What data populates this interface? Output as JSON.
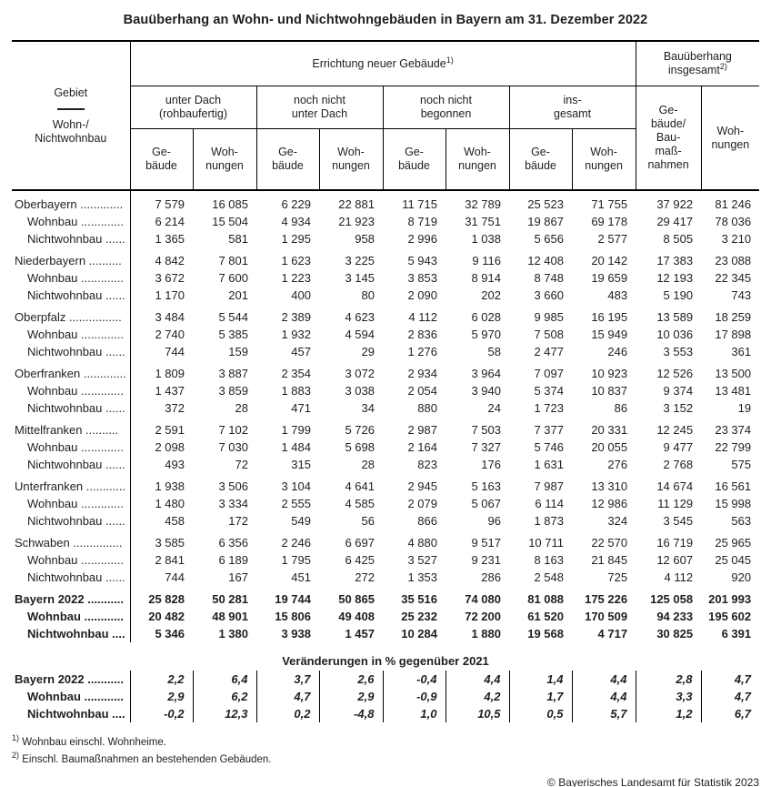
{
  "title": "Bauüberhang an Wohn- und Nichtwohngebäuden in Bayern am 31. Dezember 2022",
  "header": {
    "stub": {
      "top": "Gebiet",
      "bottom": "Wohn-/\nNichtwohnbau"
    },
    "group_errichtung": {
      "text": "Errichtung neuer Gebäude",
      "sup": "1)"
    },
    "group_bauueberhang": {
      "line1": "Bauüberhang",
      "line2": "insgesamt",
      "sup": "2)"
    },
    "subgroups": [
      "unter Dach\n(rohbaufertig)",
      "noch nicht\nunter Dach",
      "noch nicht\nbegonnen",
      "ins-\ngesamt"
    ],
    "leaf_gebaeude": "Ge-\nbäude",
    "leaf_wohnungen": "Woh-\nnungen",
    "leaf_gebaeude_baumassnahmen": "Ge-\nbäude/\nBau-\nmaß-\nnahmen"
  },
  "main_rows": [
    {
      "label": "Oberbayern .............",
      "indent": false,
      "bold": false,
      "group_start": true,
      "values": [
        "7 579",
        "16 085",
        "6 229",
        "22 881",
        "11 715",
        "32 789",
        "25 523",
        "71 755",
        "37 922",
        "81 246"
      ]
    },
    {
      "label": "Wohnbau .............",
      "indent": true,
      "bold": false,
      "group_start": false,
      "values": [
        "6 214",
        "15 504",
        "4 934",
        "21 923",
        "8 719",
        "31 751",
        "19 867",
        "69 178",
        "29 417",
        "78 036"
      ]
    },
    {
      "label": "Nichtwohnbau ......",
      "indent": true,
      "bold": false,
      "group_start": false,
      "values": [
        "1 365",
        "581",
        "1 295",
        "958",
        "2 996",
        "1 038",
        "5 656",
        "2 577",
        "8 505",
        "3 210"
      ]
    },
    {
      "label": "Niederbayern ..........",
      "indent": false,
      "bold": false,
      "group_start": true,
      "values": [
        "4 842",
        "7 801",
        "1 623",
        "3 225",
        "5 943",
        "9 116",
        "12 408",
        "20 142",
        "17 383",
        "23 088"
      ]
    },
    {
      "label": "Wohnbau .............",
      "indent": true,
      "bold": false,
      "group_start": false,
      "values": [
        "3 672",
        "7 600",
        "1 223",
        "3 145",
        "3 853",
        "8 914",
        "8 748",
        "19 659",
        "12 193",
        "22 345"
      ]
    },
    {
      "label": "Nichtwohnbau ......",
      "indent": true,
      "bold": false,
      "group_start": false,
      "values": [
        "1 170",
        "201",
        "400",
        "80",
        "2 090",
        "202",
        "3 660",
        "483",
        "5 190",
        "743"
      ]
    },
    {
      "label": "Oberpfalz ................",
      "indent": false,
      "bold": false,
      "group_start": true,
      "values": [
        "3 484",
        "5 544",
        "2 389",
        "4 623",
        "4 112",
        "6 028",
        "9 985",
        "16 195",
        "13 589",
        "18 259"
      ]
    },
    {
      "label": "Wohnbau .............",
      "indent": true,
      "bold": false,
      "group_start": false,
      "values": [
        "2 740",
        "5 385",
        "1 932",
        "4 594",
        "2 836",
        "5 970",
        "7 508",
        "15 949",
        "10 036",
        "17 898"
      ]
    },
    {
      "label": "Nichtwohnbau ......",
      "indent": true,
      "bold": false,
      "group_start": false,
      "values": [
        "744",
        "159",
        "457",
        "29",
        "1 276",
        "58",
        "2 477",
        "246",
        "3 553",
        "361"
      ]
    },
    {
      "label": "Oberfranken .............",
      "indent": false,
      "bold": false,
      "group_start": true,
      "values": [
        "1 809",
        "3 887",
        "2 354",
        "3 072",
        "2 934",
        "3 964",
        "7 097",
        "10 923",
        "12 526",
        "13 500"
      ]
    },
    {
      "label": "Wohnbau .............",
      "indent": true,
      "bold": false,
      "group_start": false,
      "values": [
        "1 437",
        "3 859",
        "1 883",
        "3 038",
        "2 054",
        "3 940",
        "5 374",
        "10 837",
        "9 374",
        "13 481"
      ]
    },
    {
      "label": "Nichtwohnbau ......",
      "indent": true,
      "bold": false,
      "group_start": false,
      "values": [
        "372",
        "28",
        "471",
        "34",
        "880",
        "24",
        "1 723",
        "86",
        "3 152",
        "19"
      ]
    },
    {
      "label": "Mittelfranken ..........",
      "indent": false,
      "bold": false,
      "group_start": true,
      "values": [
        "2 591",
        "7 102",
        "1 799",
        "5 726",
        "2 987",
        "7 503",
        "7 377",
        "20 331",
        "12 245",
        "23 374"
      ]
    },
    {
      "label": "Wohnbau .............",
      "indent": true,
      "bold": false,
      "group_start": false,
      "values": [
        "2 098",
        "7 030",
        "1 484",
        "5 698",
        "2 164",
        "7 327",
        "5 746",
        "20 055",
        "9 477",
        "22 799"
      ]
    },
    {
      "label": "Nichtwohnbau ......",
      "indent": true,
      "bold": false,
      "group_start": false,
      "values": [
        "493",
        "72",
        "315",
        "28",
        "823",
        "176",
        "1 631",
        "276",
        "2 768",
        "575"
      ]
    },
    {
      "label": "Unterfranken ............",
      "indent": false,
      "bold": false,
      "group_start": true,
      "values": [
        "1 938",
        "3 506",
        "3 104",
        "4 641",
        "2 945",
        "5 163",
        "7 987",
        "13 310",
        "14 674",
        "16 561"
      ]
    },
    {
      "label": "Wohnbau .............",
      "indent": true,
      "bold": false,
      "group_start": false,
      "values": [
        "1 480",
        "3 334",
        "2 555",
        "4 585",
        "2 079",
        "5 067",
        "6 114",
        "12 986",
        "11 129",
        "15 998"
      ]
    },
    {
      "label": "Nichtwohnbau ......",
      "indent": true,
      "bold": false,
      "group_start": false,
      "values": [
        "458",
        "172",
        "549",
        "56",
        "866",
        "96",
        "1 873",
        "324",
        "3 545",
        "563"
      ]
    },
    {
      "label": "Schwaben ...............",
      "indent": false,
      "bold": false,
      "group_start": true,
      "values": [
        "3 585",
        "6 356",
        "2 246",
        "6 697",
        "4 880",
        "9 517",
        "10 711",
        "22 570",
        "16 719",
        "25 965"
      ]
    },
    {
      "label": "Wohnbau .............",
      "indent": true,
      "bold": false,
      "group_start": false,
      "values": [
        "2 841",
        "6 189",
        "1 795",
        "6 425",
        "3 527",
        "9 231",
        "8 163",
        "21 845",
        "12 607",
        "25 045"
      ]
    },
    {
      "label": "Nichtwohnbau ......",
      "indent": true,
      "bold": false,
      "group_start": false,
      "values": [
        "744",
        "167",
        "451",
        "272",
        "1 353",
        "286",
        "2 548",
        "725",
        "4 112",
        "920"
      ]
    },
    {
      "label": "Bayern 2022 ...........",
      "indent": false,
      "bold": true,
      "group_start": true,
      "values": [
        "25 828",
        "50 281",
        "19 744",
        "50 865",
        "35 516",
        "74 080",
        "81 088",
        "175 226",
        "125 058",
        "201 993"
      ]
    },
    {
      "label": "Wohnbau ............",
      "indent": true,
      "bold": true,
      "group_start": false,
      "values": [
        "20 482",
        "48 901",
        "15 806",
        "49 408",
        "25 232",
        "72 200",
        "61 520",
        "170 509",
        "94 233",
        "195 602"
      ]
    },
    {
      "label": "Nichtwohnbau ....",
      "indent": true,
      "bold": true,
      "group_start": false,
      "values": [
        "5 346",
        "1 380",
        "3 938",
        "1 457",
        "10 284",
        "1 880",
        "19 568",
        "4 717",
        "30 825",
        "6 391"
      ]
    }
  ],
  "percent_section": {
    "heading": "Veränderungen in % gegenüber 2021",
    "rows": [
      {
        "label": "Bayern 2022 ...........",
        "indent": false,
        "bold": true,
        "group_start": false,
        "values": [
          "2,2",
          "6,4",
          "3,7",
          "2,6",
          "-0,4",
          "4,4",
          "1,4",
          "4,4",
          "2,8",
          "4,7"
        ]
      },
      {
        "label": "Wohnbau ............",
        "indent": true,
        "bold": true,
        "group_start": false,
        "values": [
          "2,9",
          "6,2",
          "4,7",
          "2,9",
          "-0,9",
          "4,2",
          "1,7",
          "4,4",
          "3,3",
          "4,7"
        ]
      },
      {
        "label": "Nichtwohnbau ....",
        "indent": true,
        "bold": true,
        "group_start": false,
        "values": [
          "-0,2",
          "12,3",
          "0,2",
          "-4,8",
          "1,0",
          "10,5",
          "0,5",
          "5,7",
          "1,2",
          "6,7"
        ]
      }
    ]
  },
  "footnotes": [
    {
      "marker": "1)",
      "text": "Wohnbau einschl. Wohnheime."
    },
    {
      "marker": "2)",
      "text": "Einschl. Baumaßnahmen an bestehenden Gebäuden."
    }
  ],
  "copyright": "© Bayerisches Landesamt für Statistik 2023",
  "colors": {
    "background": "#ffffff",
    "text": "#1f1f1f",
    "border": "#000000"
  }
}
